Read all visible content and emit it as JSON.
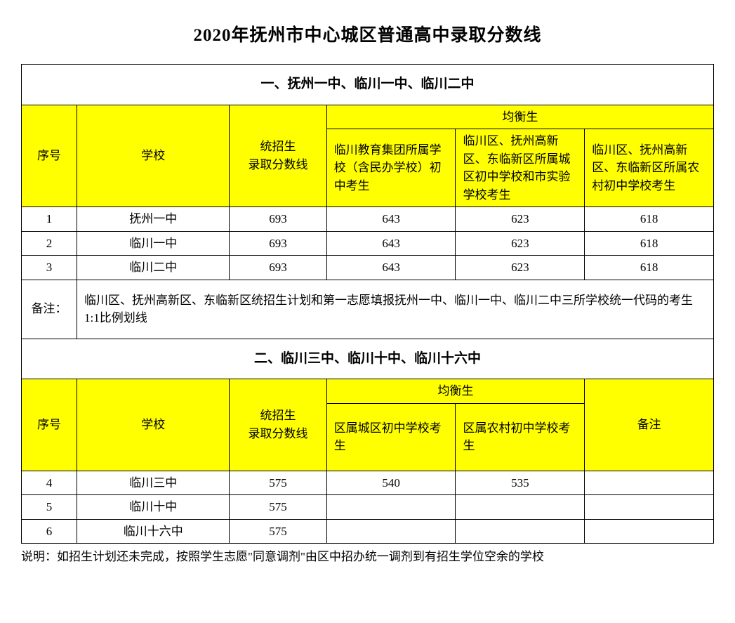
{
  "title": "2020年抚州市中心城区普通高中录取分数线",
  "section1": {
    "heading": "一、抚州一中、临川一中、临川二中",
    "h_index": "序号",
    "h_school": "学校",
    "h_score": "统招生\n录取分数线",
    "h_balance": "均衡生",
    "h_b1": "临川教育集团所属学校（含民办学校）初中考生",
    "h_b2": "临川区、抚州高新区、东临新区所属城区初中学校和市实验学校考生",
    "h_b3": "临川区、抚州高新区、东临新区所属农村初中学校考生",
    "rows": [
      {
        "i": "1",
        "name": "抚州一中",
        "s": "693",
        "b1": "643",
        "b2": "623",
        "b3": "618"
      },
      {
        "i": "2",
        "name": "临川一中",
        "s": "693",
        "b1": "643",
        "b2": "623",
        "b3": "618"
      },
      {
        "i": "3",
        "name": "临川二中",
        "s": "693",
        "b1": "643",
        "b2": "623",
        "b3": "618"
      }
    ],
    "note_label": "备注：",
    "note_text": "临川区、抚州高新区、东临新区统招生计划和第一志愿填报抚州一中、临川一中、临川二中三所学校统一代码的考生1:1比例划线"
  },
  "section2": {
    "heading": "二、临川三中、临川十中、临川十六中",
    "h_index": "序号",
    "h_school": "学校",
    "h_score": "统招生\n录取分数线",
    "h_balance": "均衡生",
    "h_b1": "区属城区初中学校考生",
    "h_b2": "区属农村初中学校考生",
    "h_remark": "备注",
    "rows": [
      {
        "i": "4",
        "name": "临川三中",
        "s": "575",
        "b1": "540",
        "b2": "535",
        "r": ""
      },
      {
        "i": "5",
        "name": "临川十中",
        "s": "575",
        "b1": "",
        "b2": "",
        "r": ""
      },
      {
        "i": "6",
        "name": "临川十六中",
        "s": "575",
        "b1": "",
        "b2": "",
        "r": ""
      }
    ]
  },
  "footer": "说明：如招生计划还未完成，按照学生志愿\"同意调剂\"由区中招办统一调剂到有招生学位空余的学校",
  "colors": {
    "header_bg": "#ffff00",
    "border": "#000000",
    "bg": "#ffffff"
  }
}
